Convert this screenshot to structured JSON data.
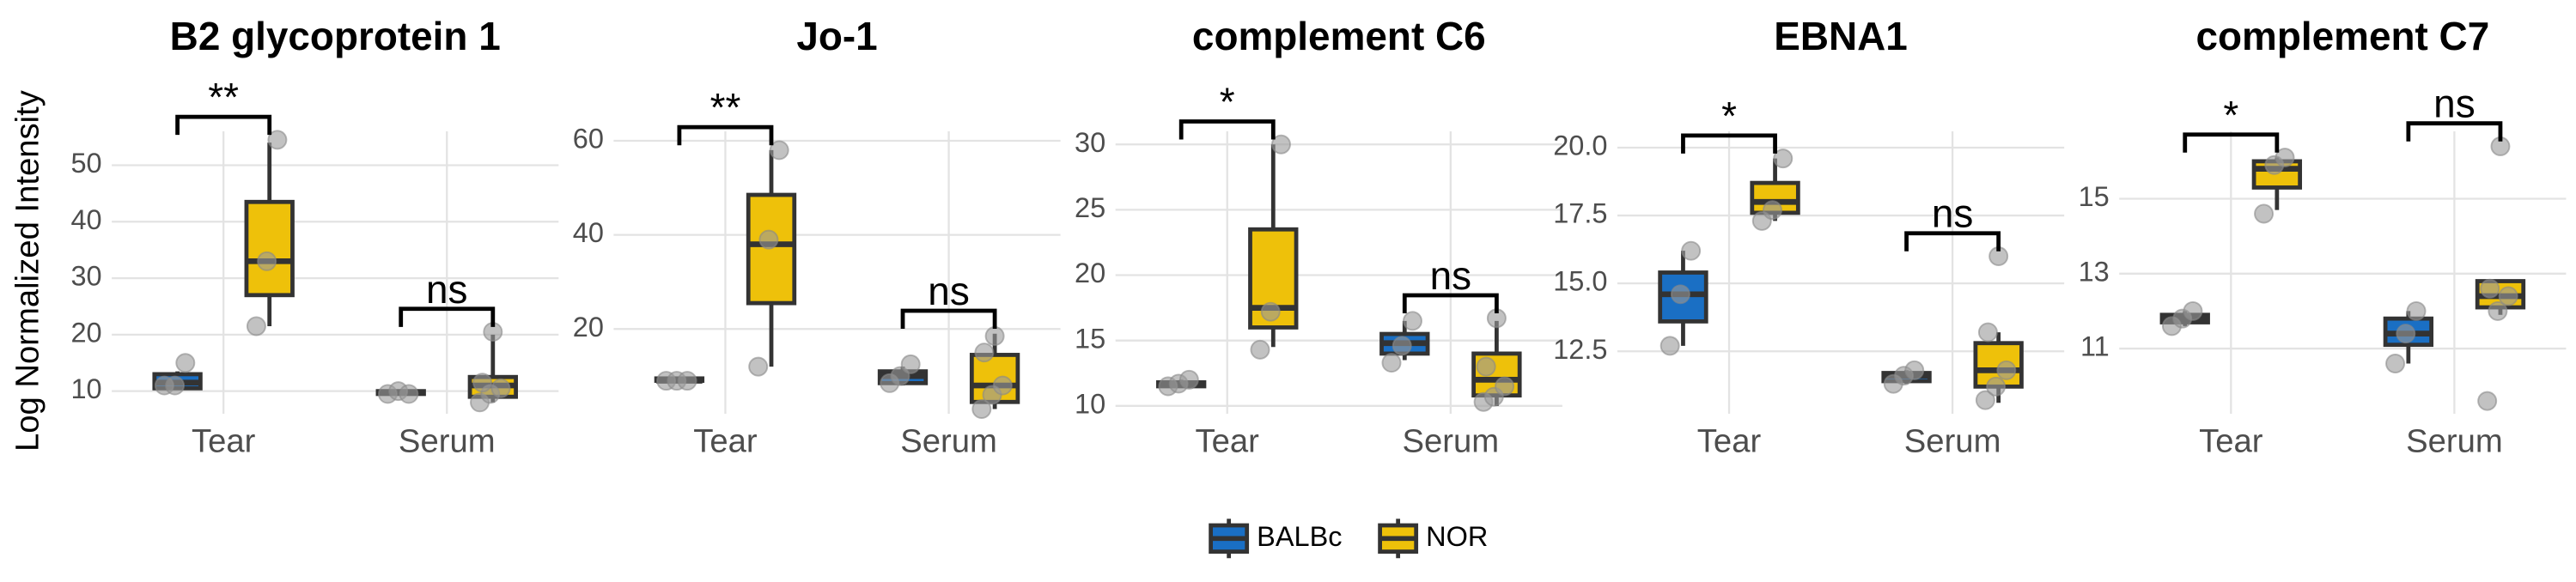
{
  "chart_data": [
    {
      "type": "box",
      "title": "B2 glycoprotein 1",
      "ylabel": "Log Normalized Intensity",
      "categories": [
        "Tear",
        "Serum"
      ],
      "series": [
        {
          "name": "BALBc",
          "color": "#1a6fc4",
          "boxes": [
            {
              "min": 10.5,
              "q1": 10.5,
              "median": 11.5,
              "q3": 13,
              "max": 13.5,
              "points": [
                11,
                11,
                15
              ]
            },
            {
              "min": 9.5,
              "q1": 9.5,
              "median": 9.8,
              "q3": 10,
              "max": 10,
              "points": [
                9.5,
                10,
                9.5
              ]
            }
          ]
        },
        {
          "name": "NOR",
          "color": "#eec10a",
          "boxes": [
            {
              "min": 21.5,
              "q1": 27,
              "median": 33,
              "q3": 43.5,
              "max": 54,
              "points": [
                21.5,
                33,
                54.5
              ]
            },
            {
              "min": 8,
              "q1": 9,
              "median": 11,
              "q3": 12.5,
              "max": 20,
              "points": [
                8,
                9.5,
                10.5,
                11.5,
                20.5
              ]
            }
          ]
        }
      ],
      "annotations": [
        "**",
        "ns"
      ],
      "ylim": [
        6,
        56
      ],
      "yticks": [
        10,
        20,
        30,
        40,
        50
      ],
      "grid": true
    },
    {
      "type": "box",
      "title": "Jo-1",
      "categories": [
        "Tear",
        "Serum"
      ],
      "series": [
        {
          "name": "BALBc",
          "color": "#1a6fc4",
          "boxes": [
            {
              "min": 8.5,
              "q1": 9,
              "median": 9,
              "q3": 9.5,
              "max": 9.5,
              "points": [
                9,
                9,
                9
              ]
            },
            {
              "min": 8,
              "q1": 8.5,
              "median": 10,
              "q3": 11,
              "max": 12,
              "points": [
                8.5,
                10,
                12.5
              ]
            }
          ]
        },
        {
          "name": "NOR",
          "color": "#eec10a",
          "boxes": [
            {
              "min": 12,
              "q1": 25.5,
              "median": 38,
              "q3": 48.5,
              "max": 58,
              "points": [
                12,
                39,
                58
              ]
            },
            {
              "min": 3,
              "q1": 4.5,
              "median": 8,
              "q3": 14.5,
              "max": 19,
              "points": [
                3,
                6,
                8,
                15,
                18.5
              ]
            }
          ]
        }
      ],
      "annotations": [
        "**",
        "ns"
      ],
      "ylim": [
        2,
        62
      ],
      "yticks": [
        20,
        40,
        60
      ],
      "grid": true
    },
    {
      "type": "box",
      "title": "complement C6",
      "categories": [
        "Tear",
        "Serum"
      ],
      "series": [
        {
          "name": "BALBc",
          "color": "#1a6fc4",
          "boxes": [
            {
              "min": 11.5,
              "q1": 11.5,
              "median": 11.7,
              "q3": 11.8,
              "max": 12,
              "points": [
                11.5,
                11.7,
                12
              ]
            },
            {
              "min": 13.5,
              "q1": 14,
              "median": 14.8,
              "q3": 15.5,
              "max": 16.5,
              "points": [
                13.3,
                14.6,
                16.5
              ]
            }
          ]
        },
        {
          "name": "NOR",
          "color": "#eec10a",
          "boxes": [
            {
              "min": 14.5,
              "q1": 16,
              "median": 17.5,
              "q3": 23.5,
              "max": 30,
              "points": [
                14.3,
                17.2,
                30
              ]
            },
            {
              "min": 10,
              "q1": 10.8,
              "median": 12,
              "q3": 14,
              "max": 16.5,
              "points": [
                10.3,
                10.7,
                11.5,
                13,
                16.7
              ]
            }
          ]
        }
      ],
      "annotations": [
        "*",
        "ns"
      ],
      "ylim": [
        9.4,
        31
      ],
      "yticks": [
        10,
        15,
        20,
        25,
        30
      ],
      "grid": true
    },
    {
      "type": "box",
      "title": "EBNA1",
      "categories": [
        "Tear",
        "Serum"
      ],
      "series": [
        {
          "name": "BALBc",
          "color": "#1a6fc4",
          "boxes": [
            {
              "min": 12.7,
              "q1": 13.6,
              "median": 14.6,
              "q3": 15.4,
              "max": 16.2,
              "points": [
                12.7,
                14.6,
                16.2
              ]
            },
            {
              "min": 11.3,
              "q1": 11.4,
              "median": 11.6,
              "q3": 11.7,
              "max": 11.8,
              "points": [
                11.3,
                11.6,
                11.8
              ]
            }
          ]
        },
        {
          "name": "NOR",
          "color": "#eec10a",
          "boxes": [
            {
              "min": 17.3,
              "q1": 17.6,
              "median": 18,
              "q3": 18.7,
              "max": 19.6,
              "points": [
                17.3,
                17.7,
                19.6
              ]
            },
            {
              "min": 10.6,
              "q1": 11.2,
              "median": 11.8,
              "q3": 12.8,
              "max": 13.2,
              "points": [
                10.7,
                11.2,
                11.8,
                13.2,
                16
              ]
            }
          ]
        }
      ],
      "annotations": [
        "*",
        "ns"
      ],
      "ylim": [
        10.2,
        20.6
      ],
      "yticks": [
        12.5,
        {
          "value": 15,
          "label": "15.0"
        },
        17.5,
        {
          "value": 20,
          "label": "20.0"
        }
      ],
      "grid": true
    },
    {
      "type": "box",
      "title": "complement C7",
      "categories": [
        "Tear",
        "Serum"
      ],
      "series": [
        {
          "name": "BALBc",
          "color": "#1a6fc4",
          "boxes": [
            {
              "min": 11.6,
              "q1": 11.7,
              "median": 11.8,
              "q3": 11.9,
              "max": 12,
              "points": [
                11.6,
                11.8,
                12
              ]
            },
            {
              "min": 10.6,
              "q1": 11.1,
              "median": 11.4,
              "q3": 11.8,
              "max": 12,
              "points": [
                10.6,
                11.4,
                12
              ]
            }
          ]
        },
        {
          "name": "NOR",
          "color": "#eec10a",
          "boxes": [
            {
              "min": 14.7,
              "q1": 15.3,
              "median": 15.8,
              "q3": 16,
              "max": 16.1,
              "points": [
                14.6,
                15.9,
                16.1
              ]
            },
            {
              "min": 11.9,
              "q1": 12.1,
              "median": 12.4,
              "q3": 12.8,
              "max": 12.8,
              "points": [
                9.6,
                12,
                12.4,
                12.6,
                16.4
              ]
            }
          ]
        }
      ],
      "annotations": [
        "*",
        "ns"
      ],
      "ylim": [
        9.26,
        16.8
      ],
      "yticks": [
        11,
        13,
        15
      ],
      "grid": true
    }
  ]
}
